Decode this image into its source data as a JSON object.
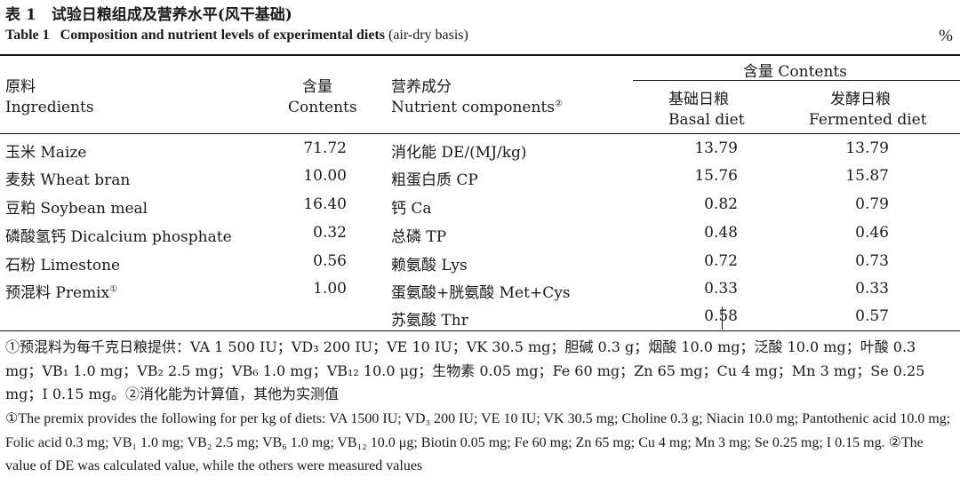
{
  "caption": {
    "cn": "表 1　试验日粮组成及营养水平(风干基础)",
    "en_label": "Table 1",
    "en_title": "Composition and nutrient levels of experimental diets",
    "en_basis": "(air-dry basis)",
    "unit": "%"
  },
  "headers": {
    "ingredients_cn": "原料",
    "ingredients_en": "Ingredients",
    "contents_cn": "含量",
    "contents_en": "Contents",
    "nutrient_cn": "营养成分",
    "nutrient_en": "Nutrient components",
    "nutrient_note": "②",
    "group": "含量 Contents",
    "basal_cn": "基础日粮",
    "basal_en": "Basal diet",
    "fermented_cn": "发酵日粮",
    "fermented_en": "Fermented diet"
  },
  "rows": [
    {
      "ingredient": "玉米 Maize",
      "note": "",
      "content": "71.72",
      "nutrient": "消化能 DE/(MJ/kg)",
      "basal": "13.79",
      "fermented": "13.79"
    },
    {
      "ingredient": "麦麸 Wheat bran",
      "note": "",
      "content": "10.00",
      "nutrient": "粗蛋白质 CP",
      "basal": "15.76",
      "fermented": "15.87"
    },
    {
      "ingredient": "豆粕 Soybean meal",
      "note": "",
      "content": "16.40",
      "nutrient": "钙 Ca",
      "basal": "0.82",
      "fermented": "0.79"
    },
    {
      "ingredient": "磷酸氢钙 Dicalcium phosphate",
      "note": "",
      "content": "0.32",
      "nutrient": "总磷 TP",
      "basal": "0.48",
      "fermented": "0.46"
    },
    {
      "ingredient": "石粉 Limestone",
      "note": "",
      "content": "0.56",
      "nutrient": "赖氨酸 Lys",
      "basal": "0.72",
      "fermented": "0.73"
    },
    {
      "ingredient": "预混料 Premix",
      "note": "①",
      "content": "1.00",
      "nutrient": "蛋氨酸+胱氨酸 Met+Cys",
      "basal": "0.33",
      "fermented": "0.33"
    },
    {
      "ingredient": "",
      "note": "",
      "content": "",
      "nutrient": "苏氨酸 Thr",
      "basal": "0.58",
      "fermented": "0.57"
    }
  ],
  "footnotes": {
    "cn": "①预混料为每千克日粮提供：VA 1 500 IU；VD₃ 200 IU；VE 10 IU；VK 30.5 mg；胆碱 0.3 g；烟酸 10.0 mg；泛酸 10.0 mg；叶酸 0.3 mg；VB₁ 1.0 mg；VB₂ 2.5 mg；VB₆ 1.0 mg；VB₁₂ 10.0 μg；生物素 0.05 mg；Fe 60 mg；Zn 65 mg；Cu 4 mg；Mn 3 mg；Se 0.25 mg；I 0.15 mg。②消化能为计算值，其他为实测值",
    "en": "①The premix provides the following for per kg of diets: VA 1500 IU; VD₃ 200 IU; VE 10 IU; VK 30.5 mg; Choline 0.3 g; Niacin 10.0 mg; Pantothenic acid 10.0 mg; Folic acid 0.3 mg; VB₁ 1.0 mg; VB₂ 2.5 mg; VB₆ 1.0 mg; VB₁₂ 10.0 μg; Biotin 0.05 mg; Fe 60 mg; Zn 65 mg; Cu 4 mg; Mn 3 mg; Se 0.25 mg; I 0.15 mg. ②The value of DE was calculated value, while the others were measured values"
  }
}
